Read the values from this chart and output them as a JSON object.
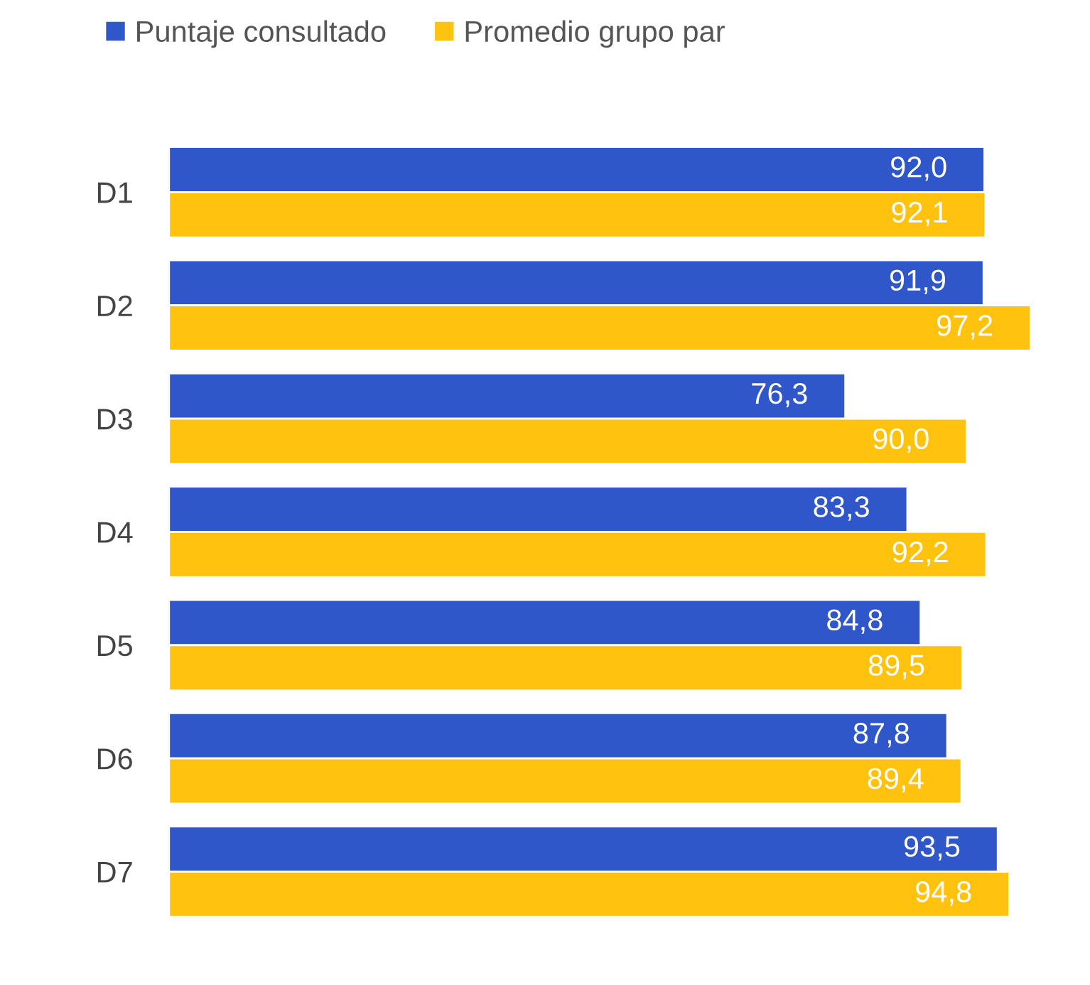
{
  "chart_data": {
    "type": "bar",
    "orientation": "horizontal",
    "categories": [
      "D1",
      "D2",
      "D3",
      "D4",
      "D5",
      "D6",
      "D7"
    ],
    "series": [
      {
        "name": "Puntaje consultado",
        "color": "#2f57c9",
        "values": [
          92.0,
          91.9,
          76.3,
          83.3,
          84.8,
          87.8,
          93.5
        ],
        "value_labels": [
          "92,0",
          "91,9",
          "76,3",
          "83,3",
          "84,8",
          "87,8",
          "93,5"
        ]
      },
      {
        "name": "Promedio grupo par",
        "color": "#ffc20e",
        "values": [
          92.1,
          97.2,
          90.0,
          92.2,
          89.5,
          89.4,
          94.8
        ],
        "value_labels": [
          "92,1",
          "97,2",
          "90,0",
          "92,2",
          "89,5",
          "89,4",
          "94,8"
        ]
      }
    ],
    "legend": "top left",
    "grid": false
  }
}
